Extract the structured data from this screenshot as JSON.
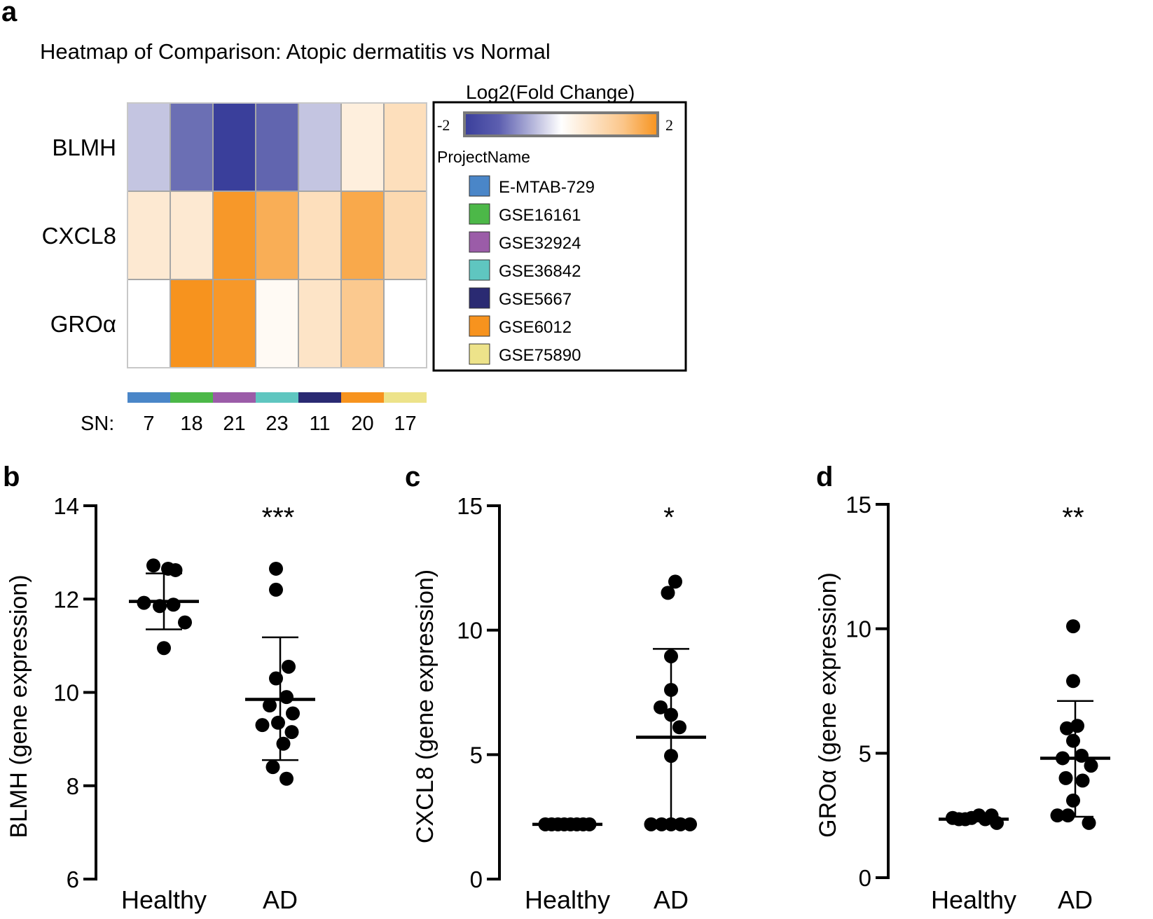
{
  "panels": {
    "a": "a",
    "b": "b",
    "c": "c",
    "d": "d"
  },
  "chart_data": [
    {
      "type": "heatmap",
      "panel": "a",
      "title": "Heatmap of Comparison: Atopic dermatitis vs Normal",
      "rows": [
        "BLMH",
        "CXCL8",
        "GROα"
      ],
      "columns": [
        "E-MTAB-729",
        "GSE16161",
        "GSE32924",
        "GSE36842",
        "GSE5667",
        "GSE6012",
        "GSE75890"
      ],
      "values": [
        [
          -0.6,
          -1.5,
          -2.0,
          -1.6,
          -0.6,
          0.3,
          0.6
        ],
        [
          0.4,
          0.4,
          1.9,
          1.5,
          0.6,
          1.6,
          0.7
        ],
        [
          0.0,
          2.0,
          1.9,
          0.1,
          0.5,
          1.0,
          0.0
        ]
      ],
      "colorbar": {
        "title": "Log2(Fold Change)",
        "min": -2,
        "max": 2,
        "min_label": "-2",
        "max_label": "2",
        "low_color": "#3a3f9b",
        "mid_color": "#ffffff",
        "high_color": "#f7931e"
      },
      "legend_title": "ProjectName",
      "legend": [
        {
          "name": "E-MTAB-729",
          "color": "#4a86c8"
        },
        {
          "name": "GSE16161",
          "color": "#4cb848"
        },
        {
          "name": "GSE32924",
          "color": "#9b5ca8"
        },
        {
          "name": "GSE36842",
          "color": "#5fc6c0"
        },
        {
          "name": "GSE5667",
          "color": "#2a2a72"
        },
        {
          "name": "GSE6012",
          "color": "#f7931e"
        },
        {
          "name": "GSE75890",
          "color": "#ede38a"
        }
      ],
      "sn_label": "SN:",
      "sn_values": [
        "7",
        "18",
        "21",
        "23",
        "11",
        "20",
        "17"
      ]
    },
    {
      "type": "scatter",
      "panel": "b",
      "ylabel": "BLMH (gene expression)",
      "ylim": [
        6,
        14
      ],
      "yticks": [
        6,
        8,
        10,
        12,
        14
      ],
      "categories": [
        "Healthy",
        "AD"
      ],
      "significance": "***",
      "groups": [
        {
          "name": "Healthy",
          "mean": 11.95,
          "sd_low": 11.35,
          "sd_high": 12.55,
          "points": [
            {
              "x": -0.5,
              "y": 12.72
            },
            {
              "x": 0.2,
              "y": 12.65
            },
            {
              "x": 0.55,
              "y": 12.62
            },
            {
              "x": -0.95,
              "y": 11.92
            },
            {
              "x": -0.2,
              "y": 11.85
            },
            {
              "x": 0.45,
              "y": 11.88
            },
            {
              "x": 1.0,
              "y": 11.5
            },
            {
              "x": 0.0,
              "y": 10.95
            }
          ]
        },
        {
          "name": "AD",
          "mean": 9.85,
          "sd_low": 8.55,
          "sd_high": 11.18,
          "points": [
            {
              "x": -0.2,
              "y": 12.65
            },
            {
              "x": -0.2,
              "y": 12.2
            },
            {
              "x": 0.4,
              "y": 10.55
            },
            {
              "x": -0.2,
              "y": 10.3
            },
            {
              "x": 0.3,
              "y": 9.9
            },
            {
              "x": -0.5,
              "y": 9.72
            },
            {
              "x": 0.6,
              "y": 9.55
            },
            {
              "x": -0.85,
              "y": 9.3
            },
            {
              "x": -0.1,
              "y": 9.35
            },
            {
              "x": 0.55,
              "y": 9.15
            },
            {
              "x": 0.15,
              "y": 8.9
            },
            {
              "x": -0.35,
              "y": 8.4
            },
            {
              "x": 0.3,
              "y": 8.15
            }
          ]
        }
      ]
    },
    {
      "type": "scatter",
      "panel": "c",
      "ylabel": "CXCL8 (gene expression)",
      "ylim": [
        0,
        15
      ],
      "yticks": [
        0,
        5,
        10,
        15
      ],
      "categories": [
        "Healthy",
        "AD"
      ],
      "significance": "*",
      "groups": [
        {
          "name": "Healthy",
          "mean": 2.2,
          "sd_low": 2.2,
          "sd_high": 2.2,
          "points": [
            {
              "x": -1.05,
              "y": 2.2
            },
            {
              "x": -0.75,
              "y": 2.2
            },
            {
              "x": -0.45,
              "y": 2.2
            },
            {
              "x": -0.15,
              "y": 2.2
            },
            {
              "x": 0.15,
              "y": 2.2
            },
            {
              "x": 0.45,
              "y": 2.2
            },
            {
              "x": 0.75,
              "y": 2.2
            },
            {
              "x": 1.05,
              "y": 2.2
            }
          ]
        },
        {
          "name": "AD",
          "mean": 5.7,
          "sd_low": 2.2,
          "sd_high": 9.25,
          "points": [
            {
              "x": 0.2,
              "y": 11.95
            },
            {
              "x": -0.15,
              "y": 11.5
            },
            {
              "x": 0.0,
              "y": 8.95
            },
            {
              "x": 0.0,
              "y": 7.6
            },
            {
              "x": -0.5,
              "y": 6.9
            },
            {
              "x": 0.0,
              "y": 6.6
            },
            {
              "x": 0.4,
              "y": 6.1
            },
            {
              "x": 0.0,
              "y": 4.95
            },
            {
              "x": -0.95,
              "y": 2.2
            },
            {
              "x": -0.45,
              "y": 2.2
            },
            {
              "x": 0.0,
              "y": 2.2
            },
            {
              "x": 0.45,
              "y": 2.2
            },
            {
              "x": 0.9,
              "y": 2.2
            }
          ]
        }
      ]
    },
    {
      "type": "scatter",
      "panel": "d",
      "ylabel": "GROα (gene expression)",
      "ylim": [
        0,
        15
      ],
      "yticks": [
        0,
        5,
        10,
        15
      ],
      "categories": [
        "Healthy",
        "AD"
      ],
      "significance": "**",
      "groups": [
        {
          "name": "Healthy",
          "mean": 2.35,
          "sd_low": 2.35,
          "sd_high": 2.35,
          "points": [
            {
              "x": -1.0,
              "y": 2.4
            },
            {
              "x": -0.7,
              "y": 2.35
            },
            {
              "x": -0.4,
              "y": 2.35
            },
            {
              "x": -0.1,
              "y": 2.4
            },
            {
              "x": 0.25,
              "y": 2.5
            },
            {
              "x": 0.55,
              "y": 2.35
            },
            {
              "x": 0.85,
              "y": 2.5
            },
            {
              "x": 1.1,
              "y": 2.2
            }
          ]
        },
        {
          "name": "AD",
          "mean": 4.8,
          "sd_low": 2.45,
          "sd_high": 7.1,
          "points": [
            {
              "x": -0.1,
              "y": 10.1
            },
            {
              "x": -0.1,
              "y": 7.9
            },
            {
              "x": -0.4,
              "y": 6.0
            },
            {
              "x": 0.1,
              "y": 6.1
            },
            {
              "x": -0.1,
              "y": 5.5
            },
            {
              "x": -0.6,
              "y": 4.8
            },
            {
              "x": 0.3,
              "y": 4.9
            },
            {
              "x": 0.75,
              "y": 4.5
            },
            {
              "x": -0.45,
              "y": 4.0
            },
            {
              "x": 0.35,
              "y": 3.9
            },
            {
              "x": -0.1,
              "y": 3.1
            },
            {
              "x": -0.85,
              "y": 2.5
            },
            {
              "x": -0.35,
              "y": 2.5
            },
            {
              "x": 0.65,
              "y": 2.2
            }
          ]
        }
      ]
    }
  ]
}
